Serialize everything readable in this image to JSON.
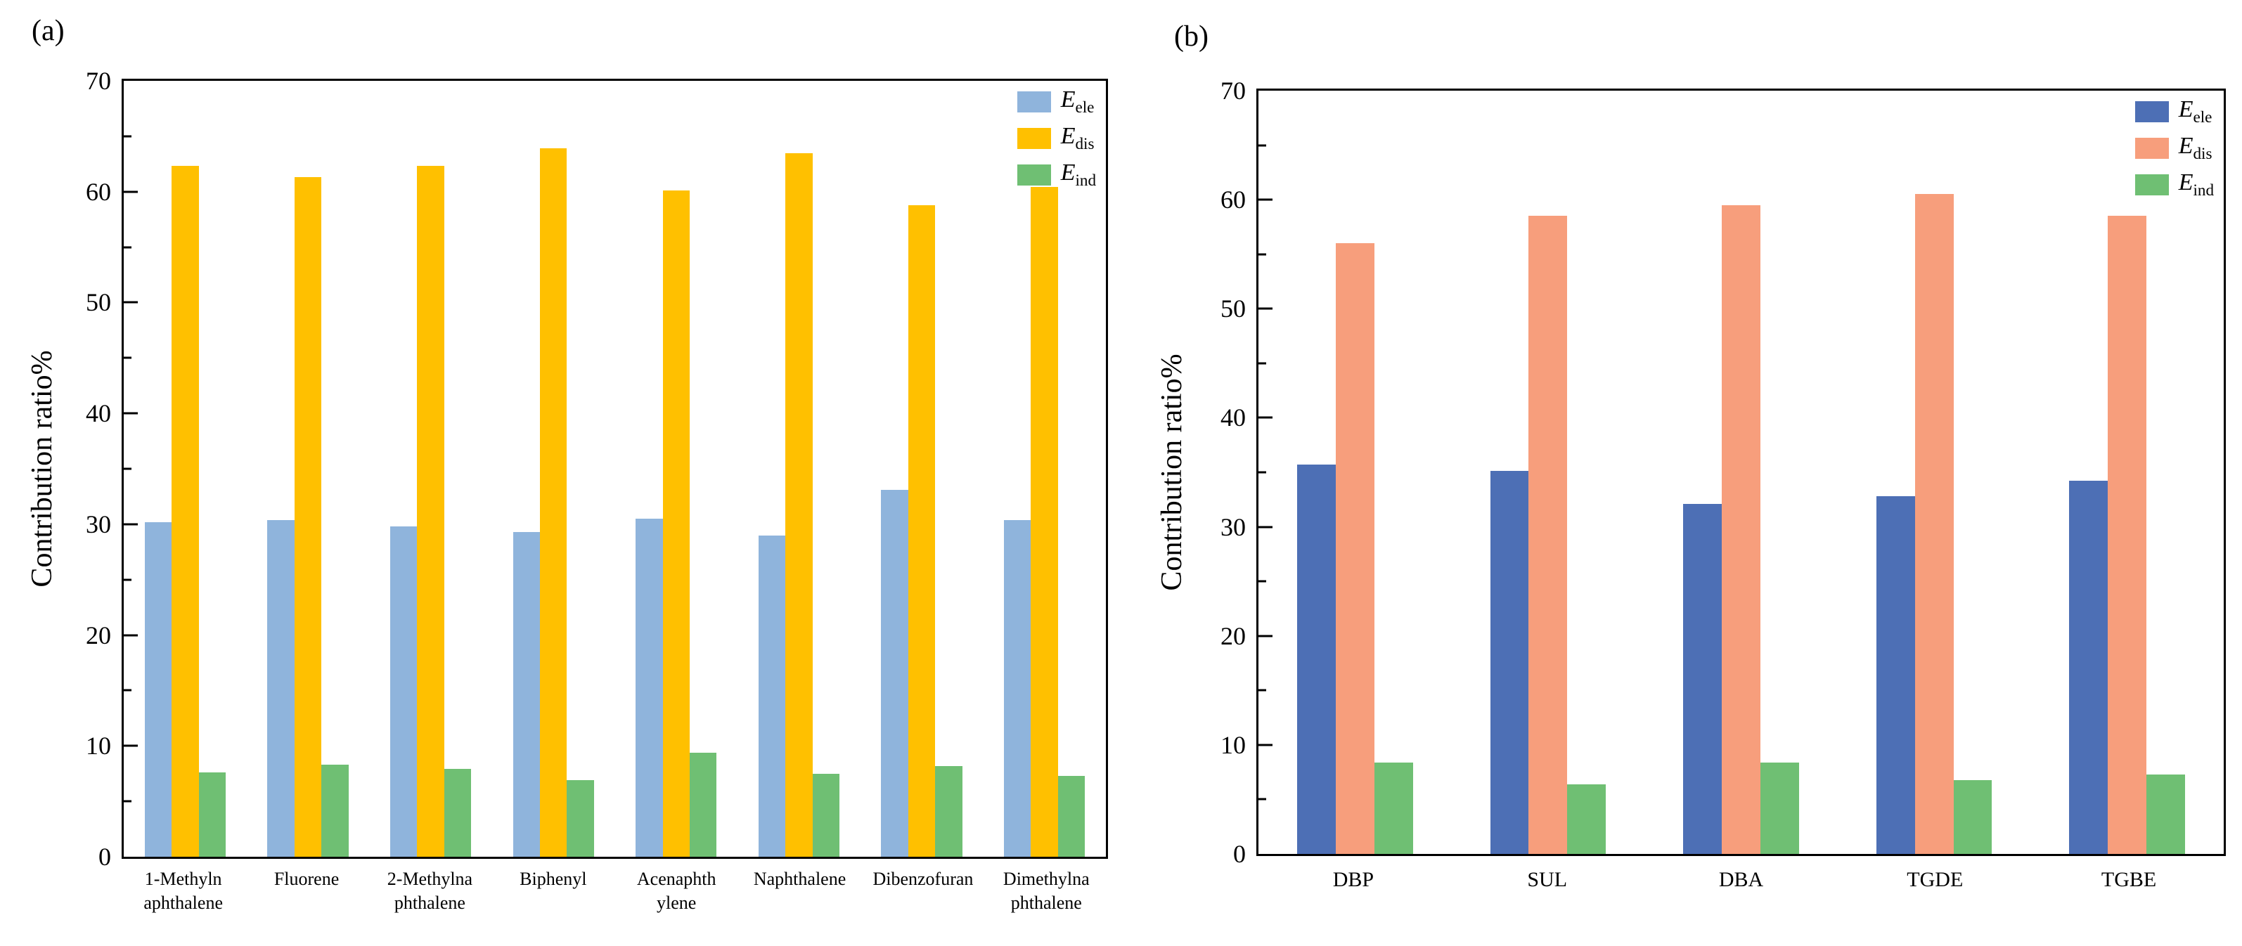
{
  "chart_data": [
    {
      "type": "bar",
      "panel_label": "(a)",
      "ylabel": "Contribution ratio%",
      "xlabel": "",
      "ylim": [
        0,
        70
      ],
      "ytick_major": 10,
      "ytick_minor": 5,
      "bar_width_pct": 22,
      "grid": false,
      "legend_position": "top-right",
      "categories": [
        "1-Methyln\naphthalene",
        "Fluorene",
        "2-Methylna\nphthalene",
        "Biphenyl",
        "Acenaphth\nylene",
        "Naphthalene",
        "Dibenzofuran",
        "Dimethylna\nphthalene"
      ],
      "series": [
        {
          "name": "E_ele",
          "label_main": "E",
          "label_sub": "ele",
          "color": "#8FB4DC",
          "values": [
            30.2,
            30.4,
            29.8,
            29.3,
            30.5,
            29.0,
            33.1,
            30.4
          ]
        },
        {
          "name": "E_dis",
          "label_main": "E",
          "label_sub": "dis",
          "color": "#FFC000",
          "values": [
            62.3,
            61.3,
            62.3,
            63.9,
            60.1,
            63.5,
            58.8,
            60.4
          ]
        },
        {
          "name": "E_ind",
          "label_main": "E",
          "label_sub": "ind",
          "color": "#6FBF73",
          "values": [
            7.6,
            8.3,
            7.9,
            6.9,
            9.4,
            7.5,
            8.2,
            7.3
          ]
        }
      ]
    },
    {
      "type": "bar",
      "panel_label": "(b)",
      "ylabel": "Contribution ratio%",
      "xlabel": "",
      "ylim": [
        0,
        70
      ],
      "ytick_major": 10,
      "ytick_minor": 5,
      "bar_width_pct": 20,
      "grid": false,
      "legend_position": "top-right",
      "categories": [
        "DBP",
        "SUL",
        "DBA",
        "TGDE",
        "TGBE"
      ],
      "series": [
        {
          "name": "E_ele",
          "label_main": "E",
          "label_sub": "ele",
          "color": "#4D6FB5",
          "values": [
            35.7,
            35.1,
            32.1,
            32.8,
            34.2
          ]
        },
        {
          "name": "E_dis",
          "label_main": "E",
          "label_sub": "dis",
          "color": "#F79E7C",
          "values": [
            56.0,
            58.5,
            59.5,
            60.5,
            58.5
          ]
        },
        {
          "name": "E_ind",
          "label_main": "E",
          "label_sub": "ind",
          "color": "#6FBF73",
          "values": [
            8.4,
            6.4,
            8.4,
            6.8,
            7.3
          ]
        }
      ]
    }
  ]
}
